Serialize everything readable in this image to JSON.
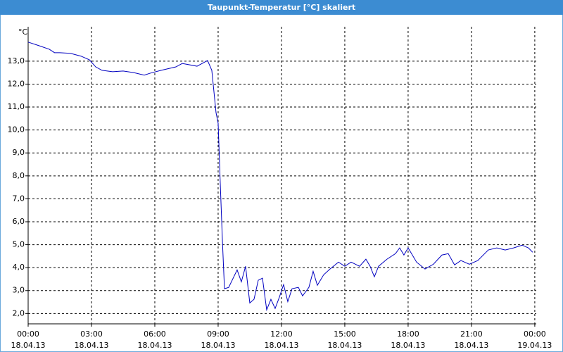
{
  "chart_data": {
    "type": "line",
    "title": "Taupunkt-Temperatur [°C] skaliert",
    "y_unit": "°C",
    "x": [
      0,
      0.5,
      1,
      1.25,
      1.5,
      2,
      2.5,
      2.9,
      3.2,
      3.5,
      4,
      4.5,
      5,
      5.5,
      5.8,
      6.3,
      7,
      7.3,
      8,
      8.5,
      8.7,
      8.9,
      9,
      9.1,
      9.2,
      9.3,
      9.5,
      9.9,
      10.1,
      10.3,
      10.5,
      10.7,
      10.9,
      11.1,
      11.3,
      11.5,
      11.7,
      11.9,
      12.1,
      12.3,
      12.5,
      12.8,
      13,
      13.3,
      13.5,
      13.7,
      14,
      14.3,
      14.7,
      15,
      15.3,
      15.7,
      16,
      16.2,
      16.4,
      16.6,
      17,
      17.4,
      17.6,
      17.8,
      18,
      18.4,
      18.8,
      19.2,
      19.6,
      19.9,
      20.2,
      20.5,
      20.9,
      21.3,
      21.8,
      22.2,
      22.6,
      23,
      23.4,
      23.7,
      23.9
    ],
    "series": [
      {
        "name": "Taupunkt",
        "color": "#0000c0",
        "values": [
          13.83,
          13.68,
          13.52,
          13.37,
          13.37,
          13.34,
          13.22,
          13.06,
          12.75,
          12.6,
          12.54,
          12.57,
          12.5,
          12.39,
          12.48,
          12.6,
          12.75,
          12.9,
          12.78,
          13.03,
          12.6,
          10.76,
          10.3,
          7.7,
          5.23,
          3.08,
          3.14,
          3.9,
          3.38,
          4.06,
          2.46,
          2.62,
          3.45,
          3.54,
          2.16,
          2.62,
          2.22,
          2.71,
          3.26,
          2.52,
          3.08,
          3.14,
          2.77,
          3.14,
          3.84,
          3.23,
          3.69,
          3.94,
          4.24,
          4.06,
          4.24,
          4.06,
          4.37,
          4.06,
          3.6,
          4.06,
          4.37,
          4.61,
          4.86,
          4.55,
          4.86,
          4.24,
          3.94,
          4.15,
          4.55,
          4.61,
          4.12,
          4.31,
          4.15,
          4.31,
          4.77,
          4.86,
          4.77,
          4.86,
          4.98,
          4.86,
          4.67
        ]
      }
    ],
    "xlim": [
      0,
      24.07
    ],
    "ylim": [
      1.55,
      14.5
    ],
    "xticks": [
      {
        "value": 0,
        "label": "00:00",
        "date": "18.04.13"
      },
      {
        "value": 3,
        "label": "03:00",
        "date": "18.04.13"
      },
      {
        "value": 6,
        "label": "06:00",
        "date": "18.04.13"
      },
      {
        "value": 9,
        "label": "09:00",
        "date": "18.04.13"
      },
      {
        "value": 12,
        "label": "12:00",
        "date": "18.04.13"
      },
      {
        "value": 15,
        "label": "15:00",
        "date": "18.04.13"
      },
      {
        "value": 18,
        "label": "18:00",
        "date": "18.04.13"
      },
      {
        "value": 21,
        "label": "21:00",
        "date": "18.04.13"
      },
      {
        "value": 24,
        "label": "00:00",
        "date": "19.04.13"
      }
    ],
    "yticks": [
      {
        "value": 2,
        "label": "2,0"
      },
      {
        "value": 3,
        "label": "3,0"
      },
      {
        "value": 4,
        "label": "4,0"
      },
      {
        "value": 5,
        "label": "5,0"
      },
      {
        "value": 6,
        "label": "6,0"
      },
      {
        "value": 7,
        "label": "7,0"
      },
      {
        "value": 8,
        "label": "8,0"
      },
      {
        "value": 9,
        "label": "9,0"
      },
      {
        "value": 10,
        "label": "10,0"
      },
      {
        "value": 11,
        "label": "11,0"
      },
      {
        "value": 12,
        "label": "12,0"
      },
      {
        "value": 13,
        "label": "13,0"
      }
    ],
    "grid": true
  }
}
